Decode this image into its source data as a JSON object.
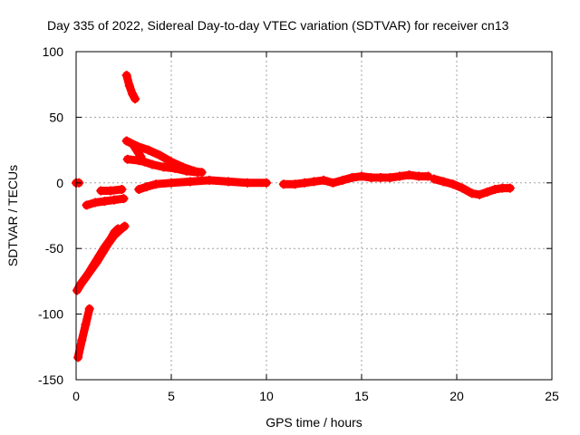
{
  "chart_data": {
    "type": "scatter",
    "title": "Day 335 of 2022, Sidereal Day-to-day VTEC variation (SDTVAR) for receiver cn13",
    "xlabel": "GPS time / hours",
    "ylabel": "SDTVAR / TECUs",
    "xlim": [
      0,
      25
    ],
    "ylim": [
      -150,
      100
    ],
    "xticks": [
      0,
      5,
      10,
      15,
      20,
      25
    ],
    "yticks": [
      -150,
      -100,
      -50,
      0,
      50,
      100
    ],
    "grid": true,
    "legend": "none",
    "series_color": "#ff0000",
    "series": [
      {
        "name": "s1",
        "x": [
          0.0,
          0.15
        ],
        "y": [
          0,
          0
        ]
      },
      {
        "name": "s2",
        "x": [
          0.1,
          0.3,
          0.5,
          0.7
        ],
        "y": [
          -133,
          -120,
          -108,
          -96
        ]
      },
      {
        "name": "s3",
        "x": [
          0.05,
          0.3,
          0.6,
          0.9,
          1.2,
          1.5,
          1.8,
          2.0,
          2.2
        ],
        "y": [
          -82,
          -76,
          -70,
          -63,
          -56,
          -49,
          -43,
          -38,
          -35
        ]
      },
      {
        "name": "s4",
        "x": [
          0.2,
          0.5,
          0.8,
          1.1,
          1.4,
          1.7,
          2.0,
          2.3,
          2.55
        ],
        "y": [
          -78,
          -72,
          -66,
          -60,
          -53,
          -46,
          -40,
          -36,
          -33
        ]
      },
      {
        "name": "s5",
        "x": [
          0.55,
          1.0,
          1.5,
          2.0,
          2.5
        ],
        "y": [
          -17,
          -15,
          -14,
          -13,
          -12
        ]
      },
      {
        "name": "s6",
        "x": [
          1.3,
          1.8,
          2.4
        ],
        "y": [
          -6,
          -6,
          -5
        ]
      },
      {
        "name": "s7",
        "x": [
          2.65,
          2.8,
          2.95,
          3.1
        ],
        "y": [
          82,
          74,
          68,
          64
        ]
      },
      {
        "name": "s8",
        "x": [
          2.65,
          3.2,
          3.8,
          4.4,
          5.0,
          5.6,
          6.2,
          6.6
        ],
        "y": [
          32,
          28,
          25,
          21,
          16,
          12,
          9,
          8
        ]
      },
      {
        "name": "s9",
        "x": [
          2.7,
          3.3,
          3.6,
          4.0,
          4.6,
          5.2,
          5.8,
          6.4
        ],
        "y": [
          18,
          17,
          16,
          14,
          12,
          11,
          9,
          8
        ]
      },
      {
        "name": "s10",
        "x": [
          3.0,
          3.4
        ],
        "y": [
          29,
          20
        ]
      },
      {
        "name": "s11",
        "x": [
          3.3,
          3.7,
          4.2,
          5.0,
          6.0,
          7.0,
          8.0,
          9.0,
          10.0
        ],
        "y": [
          -5,
          -3,
          -1,
          0,
          1,
          2,
          1,
          0,
          0
        ]
      },
      {
        "name": "s12",
        "x": [
          10.9,
          11.5,
          12.0,
          12.5,
          13.0,
          13.5,
          14.0,
          14.5,
          15.0,
          15.5,
          16.0,
          16.5,
          17.0,
          17.5,
          18.0,
          18.5
        ],
        "y": [
          -1,
          -1,
          0,
          1,
          2,
          0,
          2,
          4,
          5,
          4,
          4,
          4,
          5,
          6,
          5,
          5
        ]
      },
      {
        "name": "s13",
        "x": [
          18.8,
          19.3,
          19.8,
          20.3,
          20.8,
          21.2,
          21.6,
          22.0,
          22.4,
          22.8
        ],
        "y": [
          3,
          1,
          -1,
          -4,
          -8,
          -9,
          -7,
          -5,
          -4,
          -4
        ]
      }
    ]
  }
}
